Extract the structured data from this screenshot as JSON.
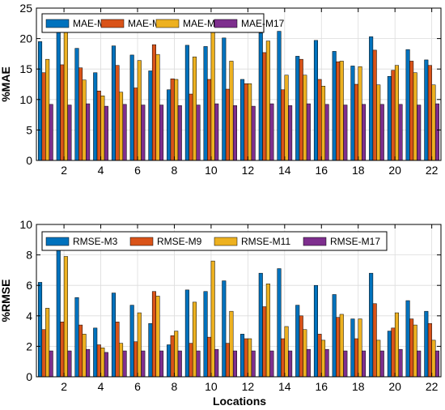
{
  "figure": {
    "xlabel": "Locations"
  },
  "chart_data": [
    {
      "type": "bar",
      "ylabel": "%MAE",
      "ylim": [
        0,
        25
      ],
      "yticks": [
        0,
        5,
        10,
        15,
        20,
        25
      ],
      "xlim": [
        0.5,
        22.5
      ],
      "xticks": [
        2,
        4,
        6,
        8,
        10,
        12,
        14,
        16,
        18,
        20,
        22
      ],
      "categories": [
        1,
        2,
        3,
        4,
        5,
        6,
        7,
        8,
        9,
        10,
        11,
        12,
        13,
        14,
        15,
        16,
        17,
        18,
        19,
        20,
        21,
        22
      ],
      "grid": true,
      "legend_position": "top-left",
      "series": [
        {
          "name": "MAE-M3",
          "color": "#0072BD",
          "values": [
            19.5,
            21.5,
            18.4,
            14.4,
            18.8,
            17.3,
            14.7,
            11.6,
            18.9,
            18.7,
            20.1,
            13.3,
            20.9,
            21.2,
            17.1,
            19.7,
            17.9,
            15.5,
            20.3,
            13.8,
            18.2,
            16.5
          ]
        },
        {
          "name": "MAE-M9",
          "color": "#D95319",
          "values": [
            14.4,
            15.7,
            15.2,
            11.4,
            15.6,
            11.9,
            19.0,
            13.4,
            10.9,
            13.3,
            11.7,
            12.6,
            17.7,
            11.6,
            16.6,
            13.3,
            16.2,
            12.5,
            18.1,
            14.8,
            16.3,
            15.6
          ]
        },
        {
          "name": "MAE-M11",
          "color": "#EDB120",
          "values": [
            16.6,
            21.5,
            13.2,
            10.6,
            11.2,
            16.4,
            17.4,
            13.3,
            17.0,
            21.5,
            16.3,
            12.6,
            19.6,
            14.0,
            14.0,
            12.2,
            16.3,
            15.4,
            12.4,
            15.6,
            14.4,
            12.4
          ]
        },
        {
          "name": "MAE-M17",
          "color": "#7E2F8E",
          "values": [
            9.2,
            9.1,
            9.3,
            8.9,
            9.2,
            9.1,
            9.1,
            9.0,
            9.1,
            9.3,
            9.0,
            8.9,
            9.3,
            9.0,
            9.3,
            9.2,
            9.1,
            9.2,
            9.2,
            9.2,
            9.1,
            9.3
          ]
        }
      ]
    },
    {
      "type": "bar",
      "ylabel": "%RMSE",
      "ylim": [
        0,
        10
      ],
      "yticks": [
        0,
        2,
        4,
        6,
        8,
        10
      ],
      "xlim": [
        0.5,
        22.5
      ],
      "xticks": [
        2,
        4,
        6,
        8,
        10,
        12,
        14,
        16,
        18,
        20,
        22
      ],
      "categories": [
        1,
        2,
        3,
        4,
        5,
        6,
        7,
        8,
        9,
        10,
        11,
        12,
        13,
        14,
        15,
        16,
        17,
        18,
        19,
        20,
        21,
        22
      ],
      "grid": true,
      "legend_position": "top",
      "series": [
        {
          "name": "RMSE-M3",
          "color": "#0072BD",
          "values": [
            6.2,
            8.3,
            5.2,
            3.2,
            5.5,
            4.7,
            3.5,
            2.1,
            5.7,
            5.6,
            6.3,
            2.8,
            6.8,
            7.1,
            4.7,
            6.0,
            5.4,
            3.8,
            6.8,
            3.0,
            5.0,
            4.3
          ]
        },
        {
          "name": "RMSE-M9",
          "color": "#D95319",
          "values": [
            3.1,
            3.6,
            3.4,
            2.1,
            3.6,
            2.3,
            5.6,
            2.7,
            2.2,
            2.6,
            2.2,
            2.5,
            4.6,
            2.5,
            4.0,
            2.8,
            3.9,
            2.5,
            4.8,
            3.2,
            3.8,
            3.5
          ]
        },
        {
          "name": "RMSE-M11",
          "color": "#EDB120",
          "values": [
            4.5,
            7.9,
            2.8,
            1.9,
            2.2,
            4.2,
            5.3,
            3.0,
            4.9,
            7.6,
            4.3,
            2.5,
            6.1,
            3.3,
            3.1,
            2.4,
            4.1,
            3.8,
            2.4,
            4.2,
            3.4,
            2.4
          ]
        },
        {
          "name": "RMSE-M17",
          "color": "#7E2F8E",
          "values": [
            1.7,
            1.7,
            1.8,
            1.6,
            1.7,
            1.7,
            1.7,
            1.7,
            1.7,
            1.8,
            1.7,
            1.7,
            1.7,
            1.7,
            1.8,
            1.8,
            1.7,
            1.7,
            1.7,
            1.8,
            1.7,
            1.7
          ]
        }
      ]
    }
  ]
}
